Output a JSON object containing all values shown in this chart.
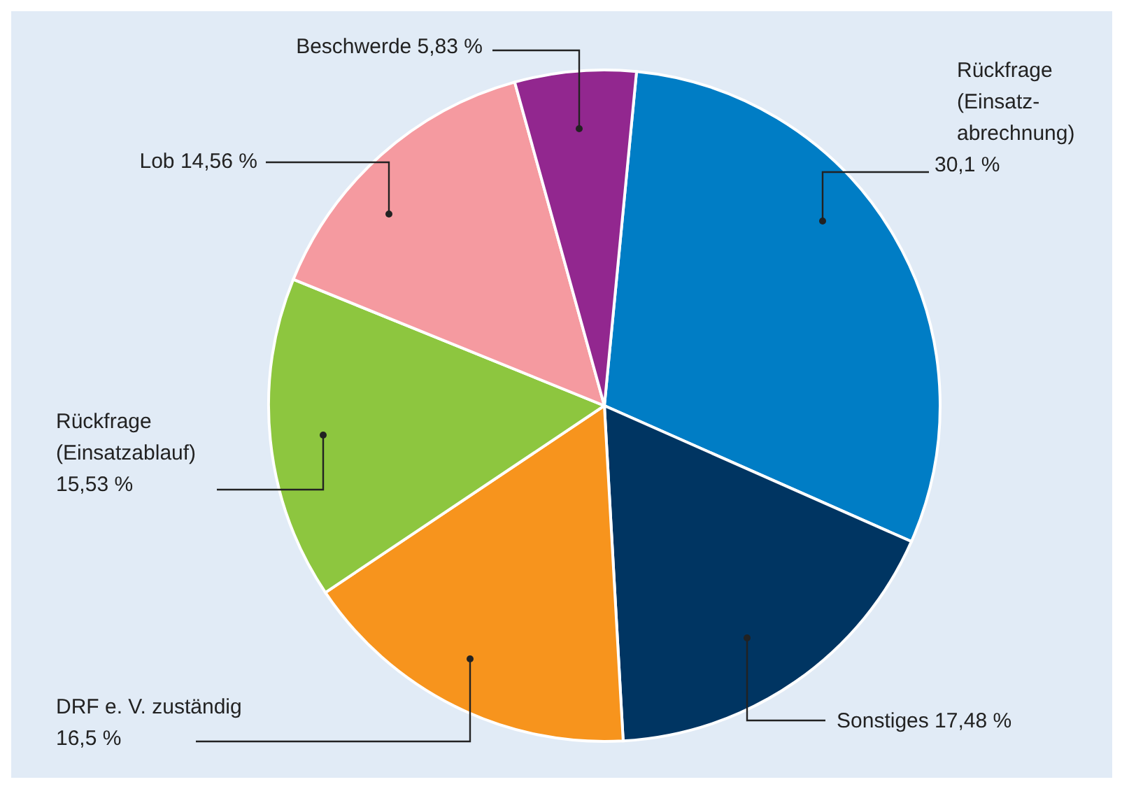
{
  "chart_data": {
    "type": "pie",
    "categories": [
      "Rückfrage\n(Einsatz-\nabrechnung)",
      "Sonstiges",
      "DRF e. V. zuständig",
      "Rückfrage\n(Einsatzablauf)",
      "Lob",
      "Beschwerde"
    ],
    "values": [
      30.1,
      17.48,
      16.5,
      15.53,
      14.56,
      5.83
    ],
    "value_labels": [
      "30,1 %",
      "17,48 %",
      "16,5 %",
      "15,53 %",
      "14,56 %",
      "5,83 %"
    ],
    "colors": [
      "#007dc5",
      "#003562",
      "#f7941d",
      "#8dc63f",
      "#f59aa0",
      "#92278f"
    ]
  }
}
